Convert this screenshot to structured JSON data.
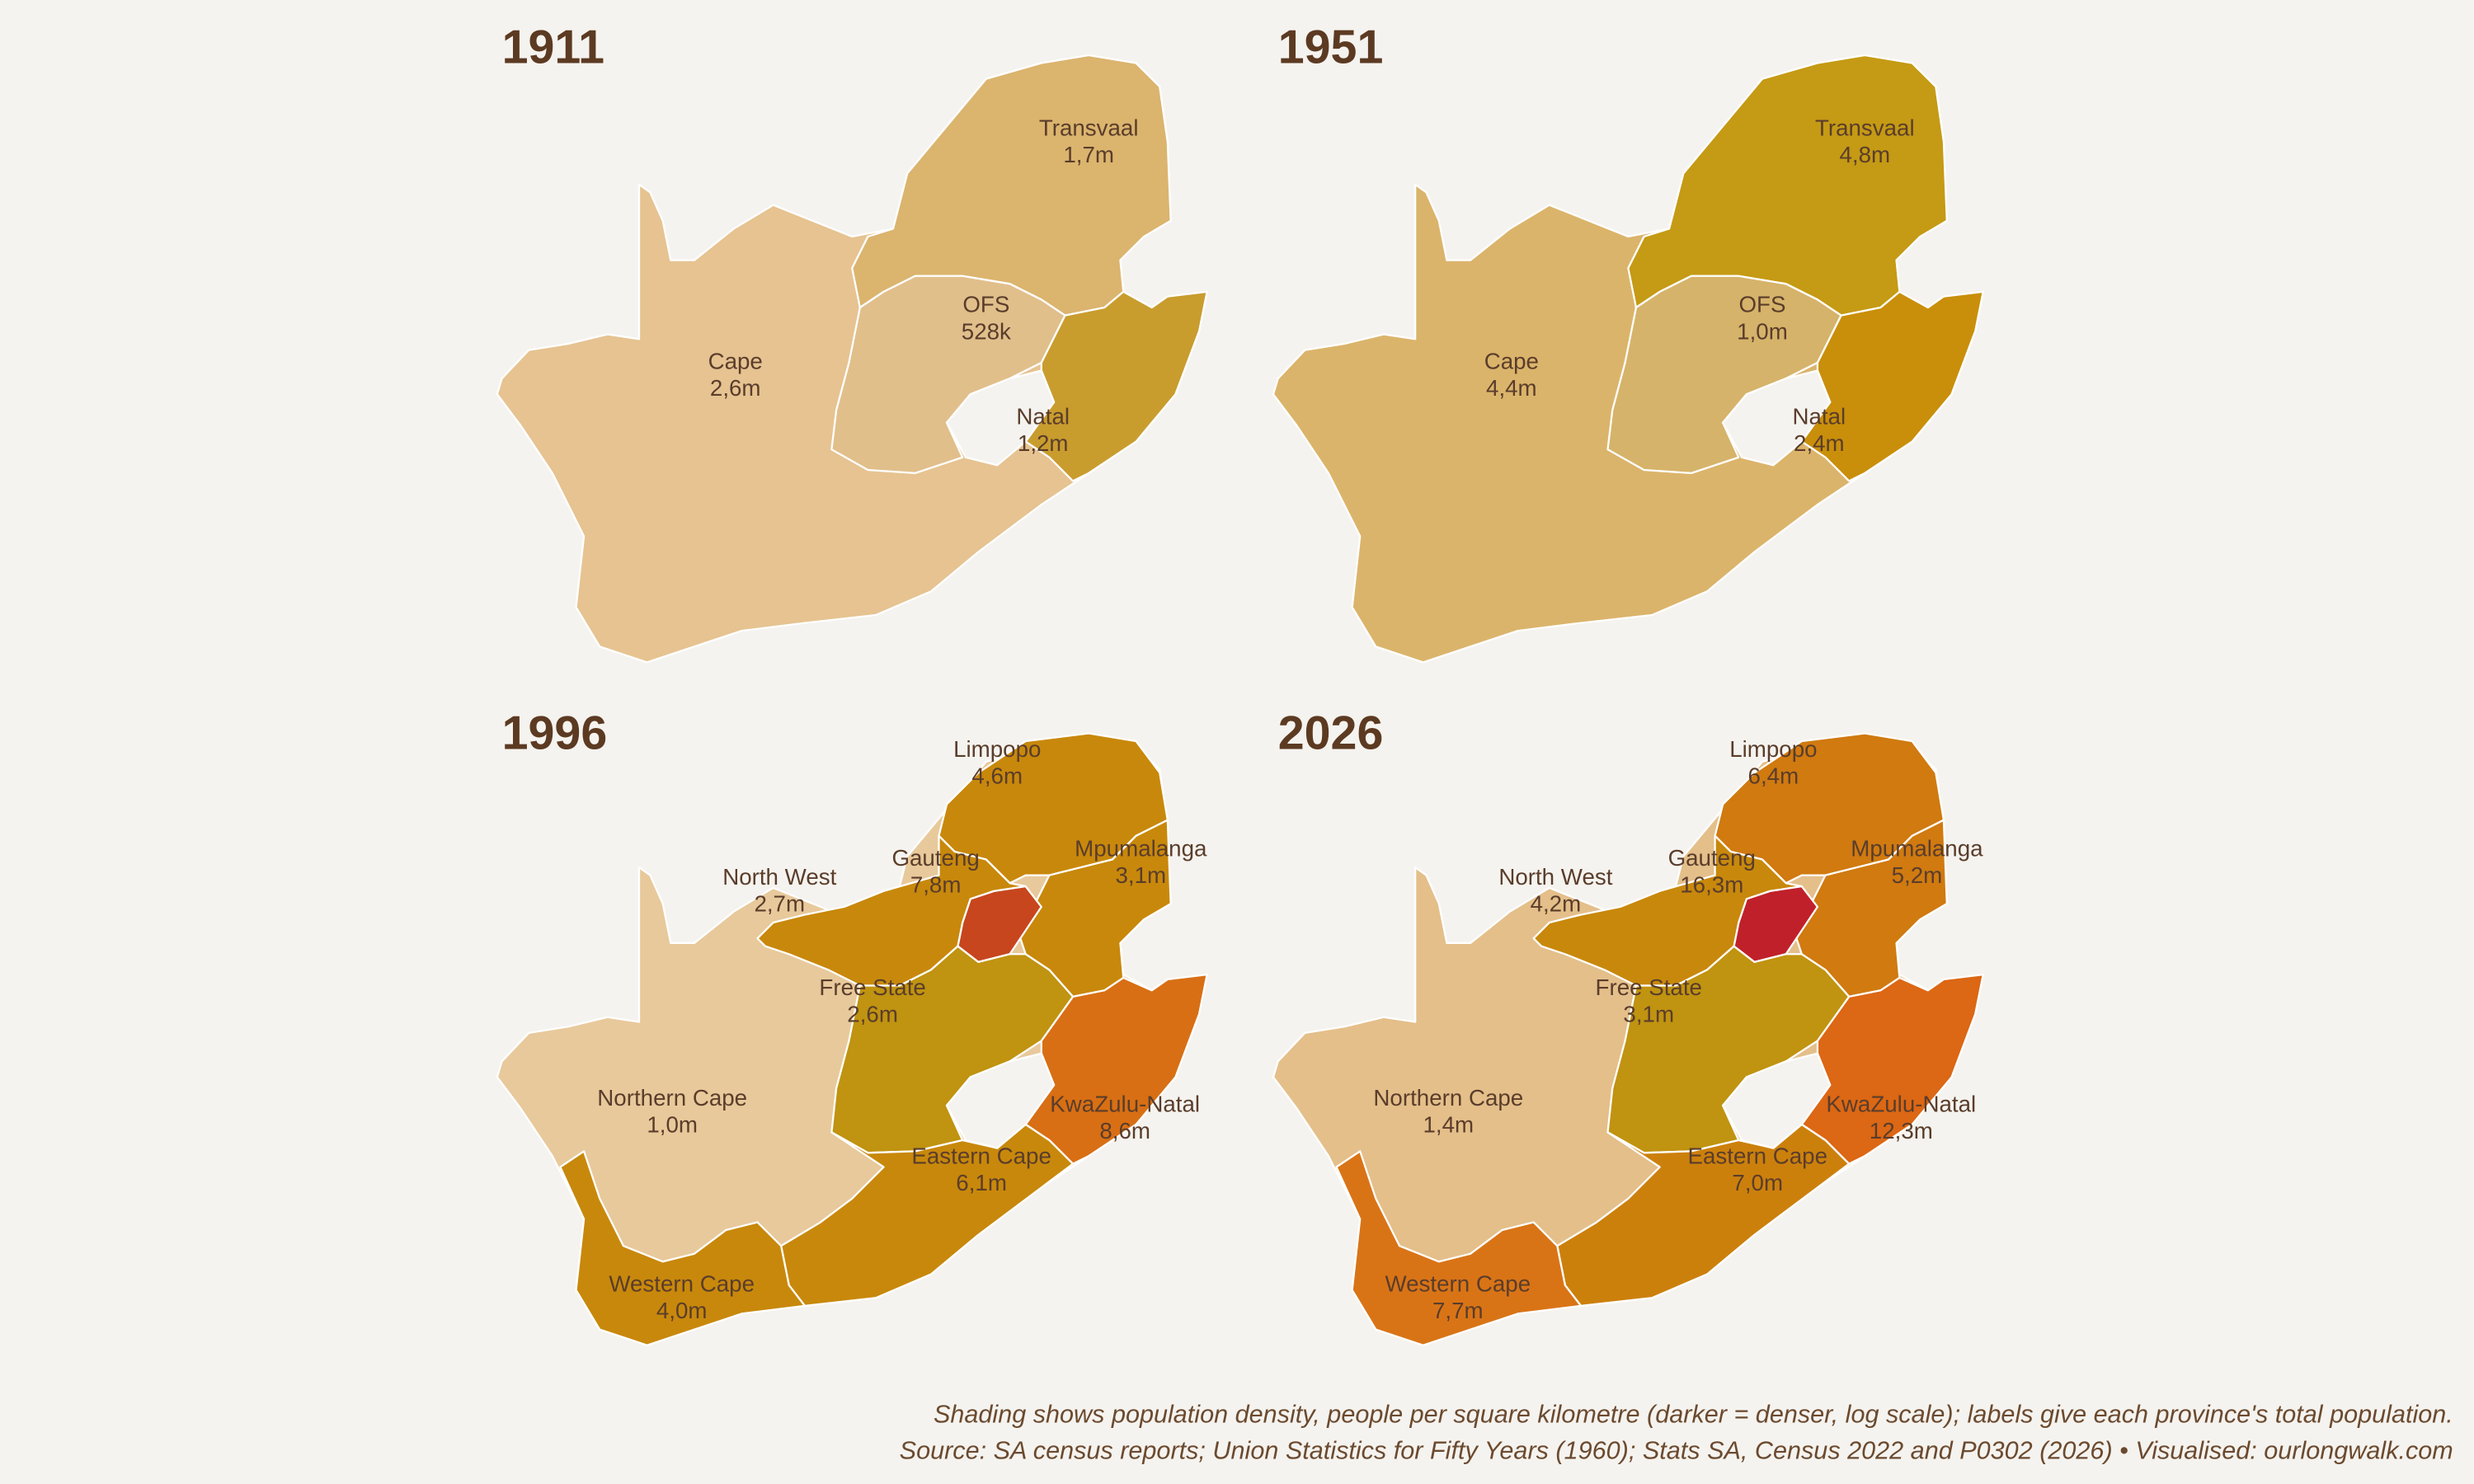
{
  "panels": [
    {
      "title": "1911",
      "provinces": [
        {
          "name": "Cape",
          "population": "2,6m",
          "color": "#e6c391"
        },
        {
          "name": "Transvaal",
          "population": "1,7m",
          "color": "#dbb46e"
        },
        {
          "name": "OFS",
          "population": "528k",
          "color": "#e1bf8b"
        },
        {
          "name": "Natal",
          "population": "1,2m",
          "color": "#c99c2e"
        }
      ]
    },
    {
      "title": "1951",
      "provinces": [
        {
          "name": "Cape",
          "population": "4,4m",
          "color": "#dbb46b"
        },
        {
          "name": "Transvaal",
          "population": "4,8m",
          "color": "#c59a14"
        },
        {
          "name": "OFS",
          "population": "1,0m",
          "color": "#d6b36a"
        },
        {
          "name": "Natal",
          "population": "2,4m",
          "color": "#c98f0a"
        }
      ]
    },
    {
      "title": "1996",
      "provinces": [
        {
          "name": "Northern Cape",
          "population": "1,0m",
          "color": "#e8c99b"
        },
        {
          "name": "Limpopo",
          "population": "4,6m",
          "color": "#c8880b"
        },
        {
          "name": "Mpumalanga",
          "population": "3,1m",
          "color": "#c8880b"
        },
        {
          "name": "Gauteng",
          "population": "7,8m",
          "color": "#c7461e"
        },
        {
          "name": "North West",
          "population": "2,7m",
          "color": "#c8880b"
        },
        {
          "name": "Free State",
          "population": "2,6m",
          "color": "#c09310"
        },
        {
          "name": "KwaZulu-Natal",
          "population": "8,6m",
          "color": "#d86f14"
        },
        {
          "name": "Eastern Cape",
          "population": "6,1m",
          "color": "#c8880b"
        },
        {
          "name": "Western Cape",
          "population": "4,0m",
          "color": "#c8880b"
        }
      ]
    },
    {
      "title": "2026",
      "provinces": [
        {
          "name": "Northern Cape",
          "population": "1,4m",
          "color": "#e4bf8a"
        },
        {
          "name": "Limpopo",
          "population": "6,4m",
          "color": "#d07a10"
        },
        {
          "name": "Mpumalanga",
          "population": "5,2m",
          "color": "#d07a10"
        },
        {
          "name": "Gauteng",
          "population": "16,3m",
          "color": "#c0202a"
        },
        {
          "name": "North West",
          "population": "4,2m",
          "color": "#c8880b"
        },
        {
          "name": "Free State",
          "population": "3,1m",
          "color": "#c09310"
        },
        {
          "name": "KwaZulu-Natal",
          "population": "12,3m",
          "color": "#dc6714"
        },
        {
          "name": "Eastern Cape",
          "population": "7,0m",
          "color": "#cc800c"
        },
        {
          "name": "Western Cape",
          "population": "7,7m",
          "color": "#d97416"
        }
      ]
    }
  ],
  "caption": [
    "Shading shows population density, people per square kilometre (darker = denser, log scale); labels give each province's total population.",
    "Source: SA census reports; Union Statistics for Fifty Years (1960); Stats SA, Census 2022 and P0302 (2026) • Visualised: ourlongwalk.com"
  ]
}
